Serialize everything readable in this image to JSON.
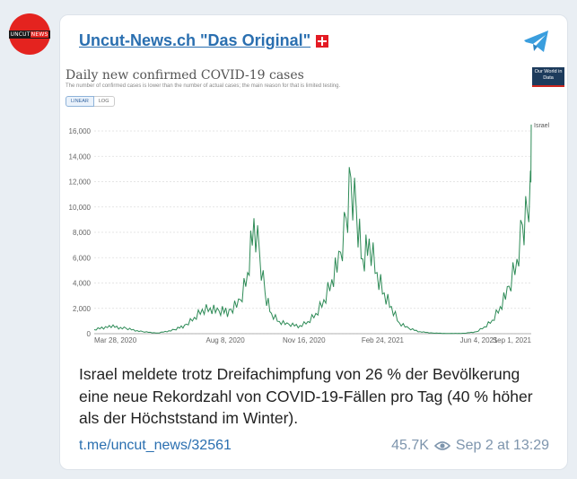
{
  "avatar": {
    "text_left": "UNCUT",
    "text_right": "NEWS",
    "color": "#e4231f"
  },
  "channel": {
    "name": "Uncut-News.ch \"Das Original\""
  },
  "chart_data": {
    "type": "line",
    "title": "Daily new confirmed COVID-19 cases",
    "subtitle": "The number of confirmed cases is lower than the number of actual cases; the main reason for that is limited testing.",
    "badge": "Our World in Data",
    "scale_options": [
      "LINEAR",
      "LOG"
    ],
    "selected_scale": "LINEAR",
    "yticks": [
      "16,000",
      "14,000",
      "12,000",
      "10,000",
      "8,000",
      "6,000",
      "4,000",
      "2,000",
      "0"
    ],
    "xticks": [
      "Mar 28, 2020",
      "Aug 8, 2020",
      "Nov 16, 2020",
      "Feb 24, 2021",
      "Jun 4, 2021",
      "Sep 1, 2021"
    ],
    "ylim": [
      0,
      16000
    ],
    "series": [
      {
        "name": "Israel",
        "color": "#2e8b57"
      }
    ],
    "x": [
      "2020-03-01",
      "2020-03-20",
      "2020-04-10",
      "2020-05-01",
      "2020-05-20",
      "2020-06-10",
      "2020-06-25",
      "2020-07-05",
      "2020-07-15",
      "2020-07-25",
      "2020-08-05",
      "2020-08-20",
      "2020-09-01",
      "2020-09-10",
      "2020-09-18",
      "2020-09-25",
      "2020-10-02",
      "2020-10-10",
      "2020-10-20",
      "2020-11-01",
      "2020-11-15",
      "2020-11-25",
      "2020-12-05",
      "2020-12-15",
      "2020-12-25",
      "2021-01-05",
      "2021-01-12",
      "2021-01-18",
      "2021-01-25",
      "2021-02-02",
      "2021-02-10",
      "2021-02-20",
      "2021-03-01",
      "2021-03-10",
      "2021-03-20",
      "2021-04-01",
      "2021-04-15",
      "2021-05-01",
      "2021-05-20",
      "2021-06-10",
      "2021-06-25",
      "2021-07-05",
      "2021-07-15",
      "2021-07-25",
      "2021-08-05",
      "2021-08-15",
      "2021-08-22",
      "2021-08-28",
      "2021-09-01",
      "2021-09-02"
    ],
    "values": [
      300,
      600,
      400,
      150,
      50,
      300,
      700,
      1200,
      1800,
      1900,
      1700,
      1800,
      2500,
      4500,
      8500,
      6000,
      3000,
      1500,
      900,
      700,
      600,
      900,
      1500,
      2500,
      4000,
      6000,
      8500,
      11500,
      9000,
      5500,
      7000,
      4500,
      3000,
      2000,
      800,
      400,
      150,
      50,
      20,
      30,
      150,
      500,
      1000,
      2000,
      3500,
      5500,
      8000,
      9000,
      12000,
      16500
    ]
  },
  "caption": "Israel meldete trotz Dreifachimpfung von 26 % der Bevölkerung eine neue Rekordzahl von COVID-19-Fällen pro Tag (40 % höher als der Höchststand im Winter).",
  "footer": {
    "link": "t.me/uncut_news/32561",
    "views": "45.7K",
    "timestamp": "Sep 2 at 13:29"
  }
}
